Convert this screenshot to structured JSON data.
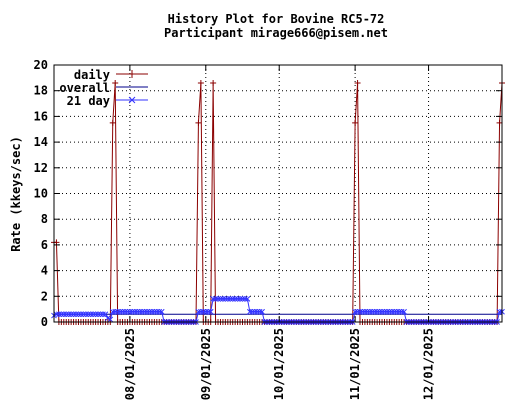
{
  "title_line1": "History Plot for Bovine RC5-72",
  "title_line2": "Participant mirage666@pisem.net",
  "colors": {
    "daily": "#8b0000",
    "overall": "#00008b",
    "day21": "#3333ff",
    "frame": "#000000",
    "grid": "#000000"
  },
  "chart_data": {
    "type": "line",
    "ylabel": "Rate (kkeys/sec)",
    "xlabel": "",
    "ylim": [
      0,
      20
    ],
    "yticks": [
      0,
      2,
      4,
      6,
      8,
      10,
      12,
      14,
      16,
      18,
      20
    ],
    "x_range": [
      "2025-07-01",
      "2025-12-31"
    ],
    "x_ticks": [
      {
        "date": "2025-08-01",
        "label": "08/01/2025"
      },
      {
        "date": "2025-09-01",
        "label": "09/01/2025"
      },
      {
        "date": "2025-10-01",
        "label": "10/01/2025"
      },
      {
        "date": "2025-11-01",
        "label": "11/01/2025"
      },
      {
        "date": "2025-12-01",
        "label": "12/01/2025"
      }
    ],
    "grid": true,
    "legend_position": "top-left",
    "series": [
      {
        "name": "daily",
        "marker": "plus",
        "points": [
          [
            "2025-07-01",
            6.2
          ],
          [
            "2025-07-02",
            6.2
          ],
          [
            "2025-07-03",
            0.0
          ],
          [
            "2025-07-24",
            0.0
          ],
          [
            "2025-07-25",
            15.5
          ],
          [
            "2025-07-26",
            18.6
          ],
          [
            "2025-07-27",
            0.0
          ],
          [
            "2025-08-28",
            0.0
          ],
          [
            "2025-08-29",
            15.5
          ],
          [
            "2025-08-30",
            18.6
          ],
          [
            "2025-08-31",
            0.0
          ],
          [
            "2025-09-03",
            0.0
          ],
          [
            "2025-09-04",
            18.6
          ],
          [
            "2025-09-05",
            0.0
          ],
          [
            "2025-10-31",
            0.0
          ],
          [
            "2025-11-01",
            15.5
          ],
          [
            "2025-11-02",
            18.6
          ],
          [
            "2025-11-03",
            0.0
          ],
          [
            "2025-12-29",
            0.0
          ],
          [
            "2025-12-30",
            15.5
          ],
          [
            "2025-12-31",
            18.6
          ]
        ]
      },
      {
        "name": "overall",
        "marker": "none",
        "points": [
          [
            "2025-07-01",
            0.6
          ],
          [
            "2025-12-31",
            0.6
          ]
        ]
      },
      {
        "name": "21 day",
        "marker": "cross",
        "points": [
          [
            "2025-07-01",
            0.5
          ],
          [
            "2025-07-02",
            0.6
          ],
          [
            "2025-07-22",
            0.6
          ],
          [
            "2025-07-23",
            0.3
          ],
          [
            "2025-07-24",
            0.2
          ],
          [
            "2025-07-25",
            0.8
          ],
          [
            "2025-08-14",
            0.8
          ],
          [
            "2025-08-15",
            0.0
          ],
          [
            "2025-08-28",
            0.0
          ],
          [
            "2025-08-29",
            0.8
          ],
          [
            "2025-09-03",
            0.8
          ],
          [
            "2025-09-04",
            1.8
          ],
          [
            "2025-09-18",
            1.8
          ],
          [
            "2025-09-19",
            0.8
          ],
          [
            "2025-09-24",
            0.8
          ],
          [
            "2025-09-25",
            0.0
          ],
          [
            "2025-10-31",
            0.0
          ],
          [
            "2025-11-01",
            0.8
          ],
          [
            "2025-11-21",
            0.8
          ],
          [
            "2025-11-22",
            0.0
          ],
          [
            "2025-12-29",
            0.0
          ],
          [
            "2025-12-30",
            0.8
          ],
          [
            "2025-12-31",
            0.8
          ]
        ]
      }
    ]
  }
}
